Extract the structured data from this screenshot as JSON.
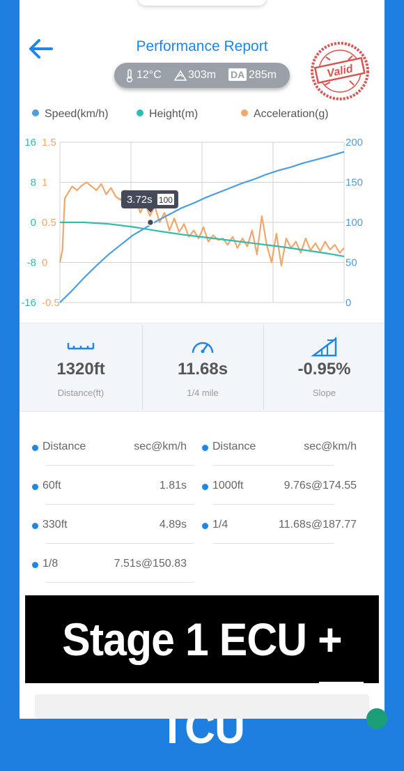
{
  "header": {
    "title": "Performance Report",
    "stamp_text": "Valid"
  },
  "conditions": {
    "temperature": "12°C",
    "altitude": "303m",
    "da_badge": "DA",
    "density_altitude": "285m"
  },
  "legend": [
    {
      "label": "Speed(km/h)",
      "color": "#4a9ee3"
    },
    {
      "label": "Height(m)",
      "color": "#2fbcb0"
    },
    {
      "label": "Acceleration(g)",
      "color": "#f2a76a"
    }
  ],
  "chart_data": {
    "type": "line",
    "axes": {
      "height_ticks": [
        "16",
        "8",
        "0",
        "-8",
        "-16"
      ],
      "height_range": [
        -16,
        16
      ],
      "accel_ticks": [
        "1.5",
        "1",
        "0.5",
        "0",
        "-0.5"
      ],
      "accel_range": [
        -0.5,
        1.5
      ],
      "speed_ticks": [
        "200",
        "150",
        "100",
        "50",
        "0"
      ],
      "speed_range": [
        0,
        200
      ],
      "time_range": [
        0,
        11.68
      ]
    },
    "grid": true,
    "tooltip": {
      "time": "3.72s",
      "speed": "100"
    },
    "series": [
      {
        "name": "Speed(km/h)",
        "axis": "speed",
        "color": "#4a9ee3",
        "x": [
          0,
          0.5,
          1,
          1.5,
          2,
          2.5,
          3,
          3.5,
          4,
          4.5,
          5,
          5.5,
          6,
          6.5,
          7,
          7.5,
          8,
          8.5,
          9,
          9.5,
          10,
          10.5,
          11,
          11.68
        ],
        "y": [
          0,
          15,
          31,
          46,
          60,
          72,
          84,
          93,
          102,
          110,
          118,
          124,
          131,
          137,
          143,
          149,
          154,
          160,
          165,
          169,
          174,
          178,
          182,
          188
        ]
      },
      {
        "name": "Height(m)",
        "axis": "height",
        "color": "#2fbcb0",
        "x": [
          0,
          1,
          2,
          3,
          4,
          5,
          6,
          7,
          8,
          9,
          10,
          11,
          11.68
        ],
        "y": [
          0,
          0,
          -0.3,
          -0.9,
          -1.7,
          -2.4,
          -3.0,
          -3.6,
          -4.2,
          -4.8,
          -5.5,
          -6.2,
          -6.8
        ]
      },
      {
        "name": "Acceleration(g)",
        "axis": "accel",
        "color": "#f2a76a",
        "x": [
          0,
          0.1,
          0.2,
          0.3,
          0.5,
          0.7,
          0.9,
          1.1,
          1.3,
          1.5,
          1.7,
          1.9,
          2.1,
          2.3,
          2.5,
          2.7,
          2.9,
          3.1,
          3.3,
          3.5,
          3.7,
          3.9,
          4.1,
          4.3,
          4.5,
          4.7,
          4.9,
          5.1,
          5.3,
          5.5,
          5.7,
          5.9,
          6.1,
          6.3,
          6.5,
          6.7,
          6.9,
          7.1,
          7.3,
          7.5,
          7.7,
          7.9,
          8.1,
          8.3,
          8.5,
          8.7,
          8.9,
          9.1,
          9.3,
          9.5,
          9.7,
          9.9,
          10.1,
          10.3,
          10.5,
          10.7,
          10.9,
          11.1,
          11.3,
          11.5,
          11.68
        ],
        "y": [
          0,
          0.15,
          0.8,
          0.85,
          0.95,
          0.9,
          0.96,
          1.0,
          0.95,
          0.9,
          0.98,
          0.85,
          0.93,
          0.82,
          0.78,
          0.9,
          0.72,
          0.82,
          0.62,
          0.74,
          0.58,
          0.7,
          0.5,
          0.62,
          0.4,
          0.55,
          0.38,
          0.48,
          0.32,
          0.4,
          0.3,
          0.44,
          0.26,
          0.34,
          0.28,
          0.3,
          0.22,
          0.32,
          0.18,
          0.3,
          0.2,
          0.4,
          0.1,
          0.58,
          0.22,
          0.0,
          0.36,
          -0.04,
          0.3,
          0.18,
          0.26,
          0.12,
          0.3,
          0.15,
          0.24,
          0.14,
          0.26,
          0.16,
          0.22,
          0.12,
          0.18
        ]
      }
    ]
  },
  "summary": [
    {
      "value": "1320ft",
      "label": "Distance(ft)",
      "icon": "ruler-icon"
    },
    {
      "value": "11.68s",
      "label": "1/4 mile",
      "icon": "speedometer-icon"
    },
    {
      "value": "-0.95%",
      "label": "Slope",
      "icon": "slope-icon"
    }
  ],
  "splits": {
    "left": [
      {
        "key": "Distance",
        "value": "sec@km/h"
      },
      {
        "key": "60ft",
        "value": "1.81s"
      },
      {
        "key": "330ft",
        "value": "4.89s"
      },
      {
        "key": "1/8",
        "value": "7.51s@150.83"
      }
    ],
    "right": [
      {
        "key": "Distance",
        "value": "sec@km/h"
      },
      {
        "key": "1000ft",
        "value": "9.76s@174.55"
      },
      {
        "key": "1/4",
        "value": "11.68s@187.77"
      }
    ]
  },
  "overlay": {
    "caption": "Stage 1 ECU + TCU"
  }
}
